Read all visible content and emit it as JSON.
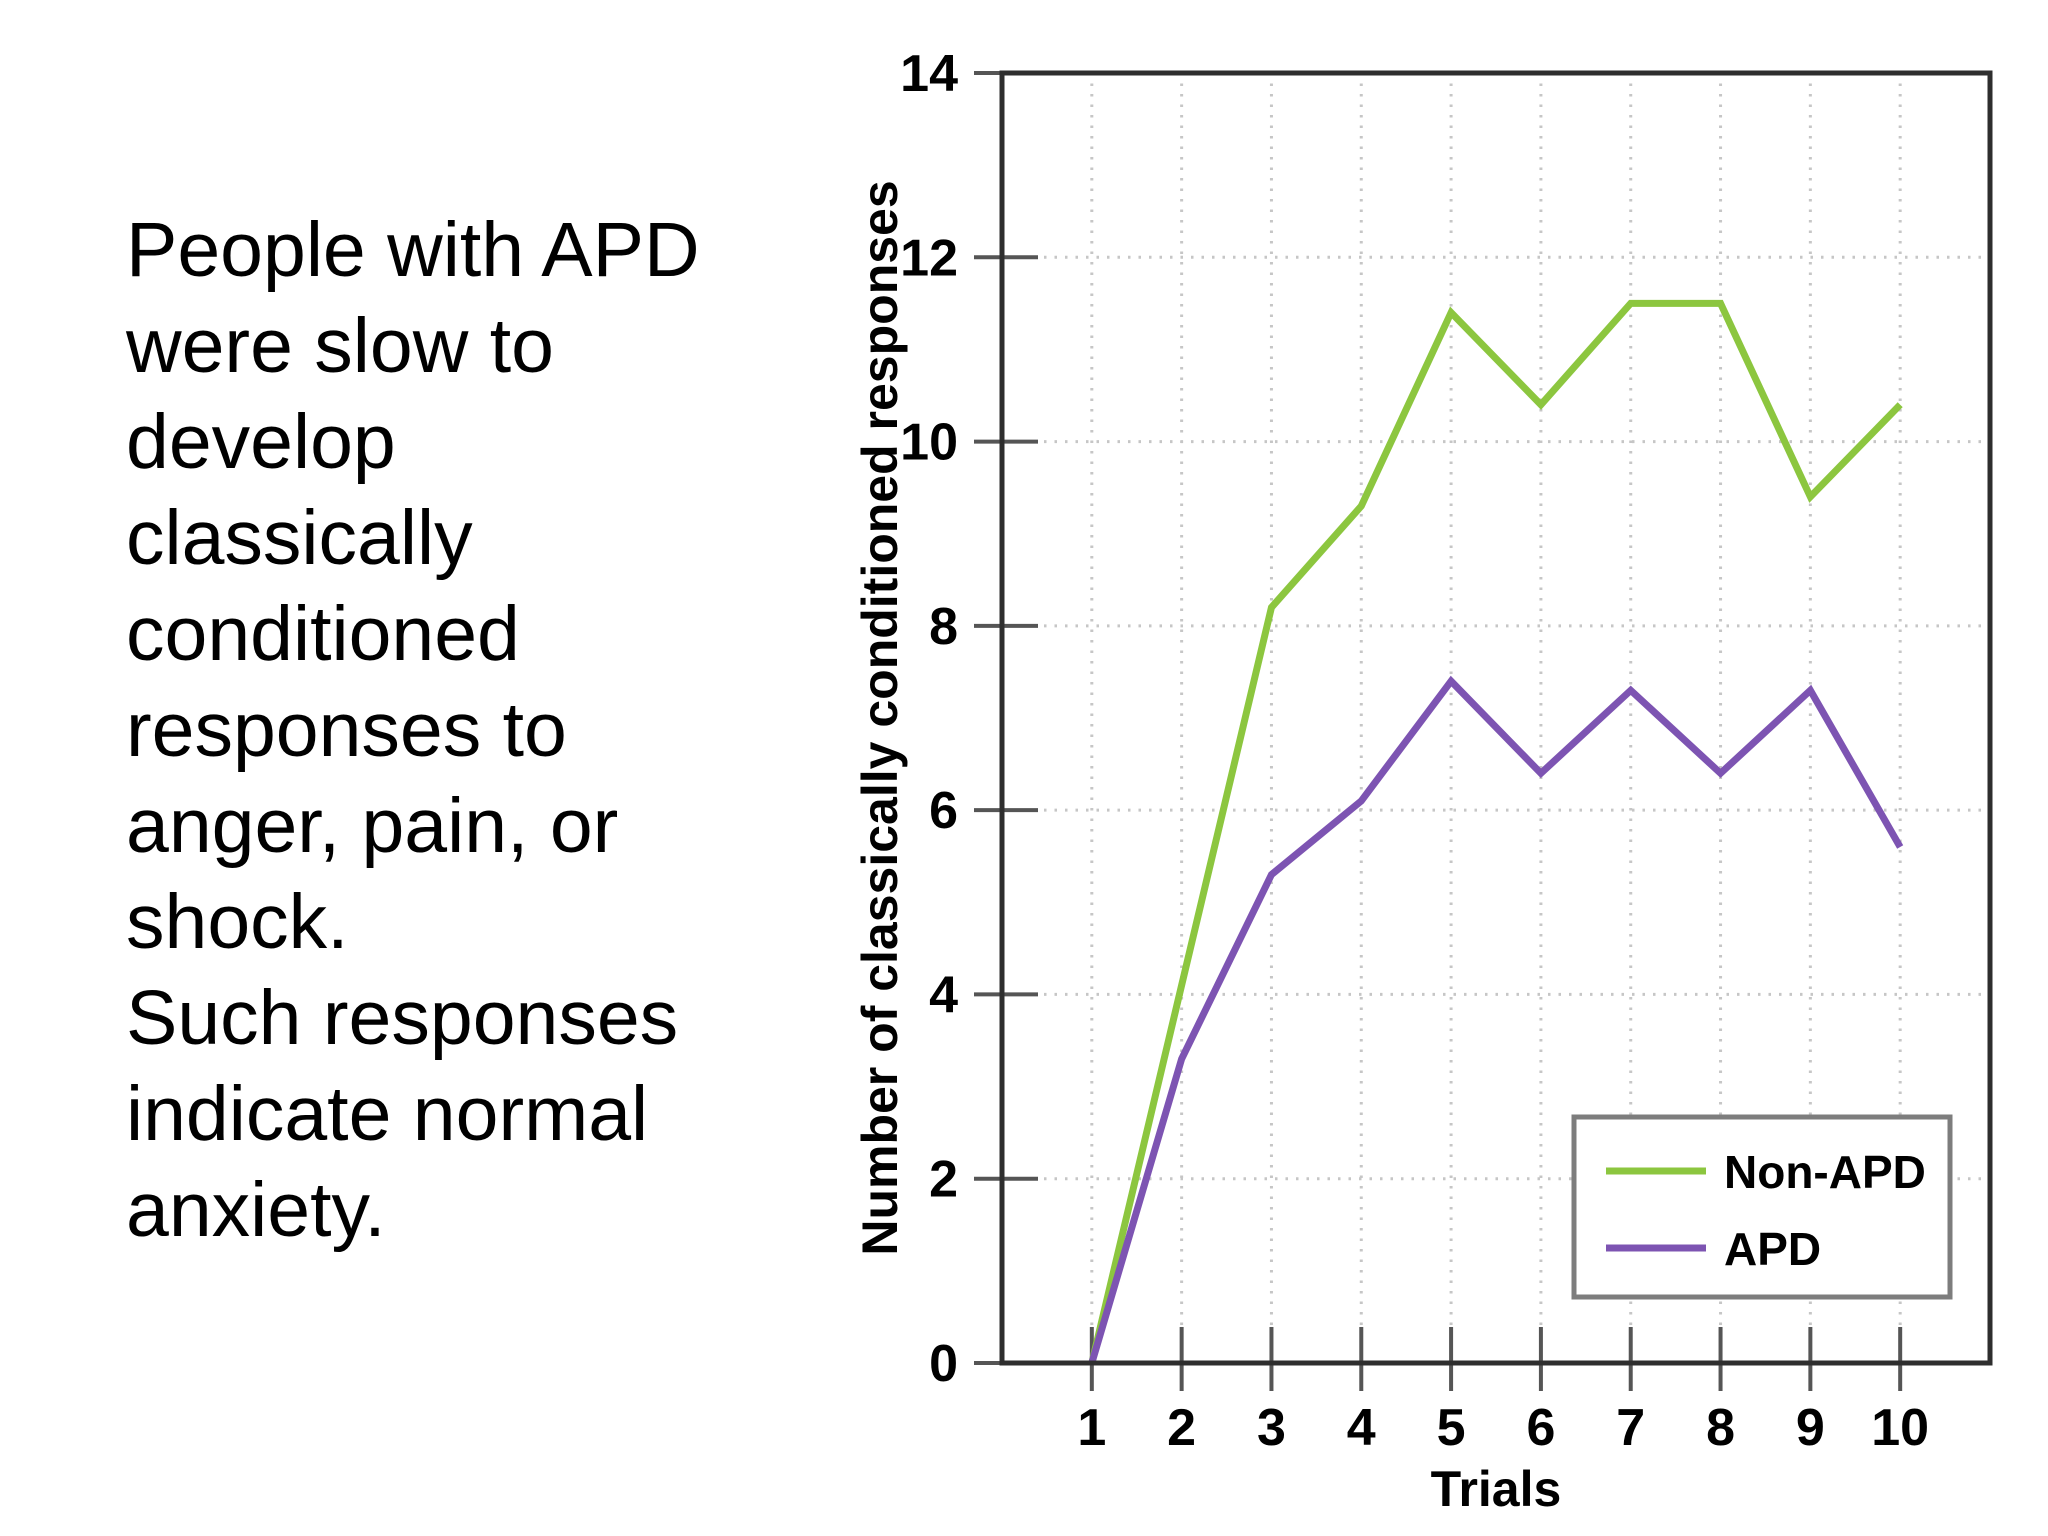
{
  "slide": {
    "body_lines": [
      "People with APD",
      "were slow to",
      "develop",
      "classically",
      "conditioned",
      "responses to",
      "anger, pain, or",
      "shock.",
      "Such responses",
      "indicate normal",
      "anxiety."
    ]
  },
  "chart_data": {
    "type": "line",
    "title": "",
    "xlabel": "Trials",
    "ylabel": "Number of classically conditioned responses",
    "x": [
      1,
      2,
      3,
      4,
      5,
      6,
      7,
      8,
      9,
      10
    ],
    "series": [
      {
        "name": "Non-APD",
        "color": "#8CC63F",
        "values": [
          0,
          4.1,
          8.2,
          9.3,
          11.4,
          10.4,
          11.5,
          11.5,
          9.4,
          10.4
        ]
      },
      {
        "name": "APD",
        "color": "#7D54B2",
        "values": [
          0,
          3.3,
          5.3,
          6.1,
          7.4,
          6.4,
          7.3,
          6.4,
          7.3,
          5.6
        ]
      }
    ],
    "ylim": [
      0,
      14
    ],
    "xlim_padded": [
      0,
      11
    ],
    "yticks": [
      0,
      2,
      4,
      6,
      8,
      10,
      12,
      14
    ],
    "xticks": [
      1,
      2,
      3,
      4,
      5,
      6,
      7,
      8,
      9,
      10
    ],
    "grid": "dotted",
    "legend_position": "lower right",
    "legend_entries": [
      "Non-APD",
      "APD"
    ]
  },
  "colors": {
    "background": "#ffffff",
    "text": "#000000",
    "axis": "#2e2e2e",
    "tick": "#555555",
    "gridline": "#c6c6c6",
    "legend_border": "#7d7d7d",
    "non_apd_line": "#8CC63F",
    "apd_line": "#7D54B2"
  }
}
